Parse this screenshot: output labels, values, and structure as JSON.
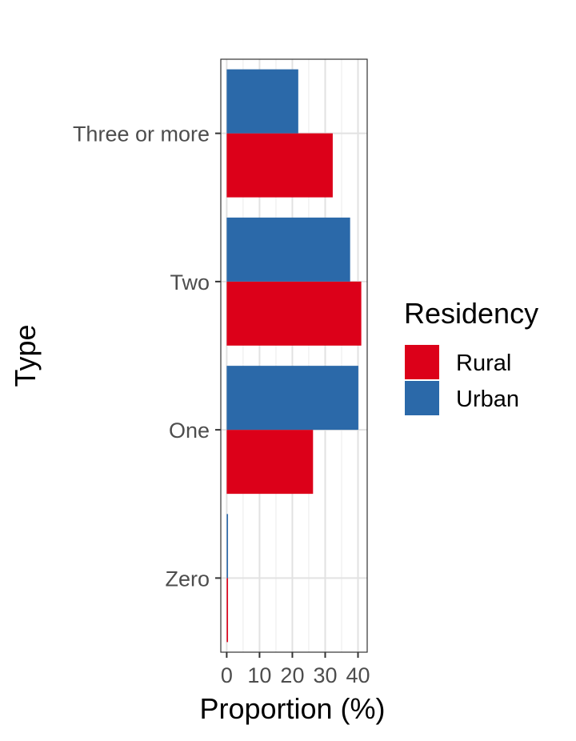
{
  "chart_data": {
    "type": "bar",
    "orientation": "horizontal",
    "categories": [
      "Zero",
      "One",
      "Two",
      "Three or more"
    ],
    "series": [
      {
        "name": "Rural",
        "color": "#DC0019",
        "values": [
          0.4,
          26.3,
          41.0,
          32.3
        ]
      },
      {
        "name": "Urban",
        "color": "#2B69A9",
        "values": [
          0.4,
          40.1,
          37.6,
          21.8
        ]
      }
    ],
    "xlabel": "Proportion (%)",
    "ylabel": "Type",
    "x_ticks": [
      0,
      10,
      20,
      30,
      40
    ],
    "xlim": [
      -1.8,
      42.8
    ],
    "grid": true,
    "legend": {
      "title": "Residency",
      "position": "right"
    }
  }
}
